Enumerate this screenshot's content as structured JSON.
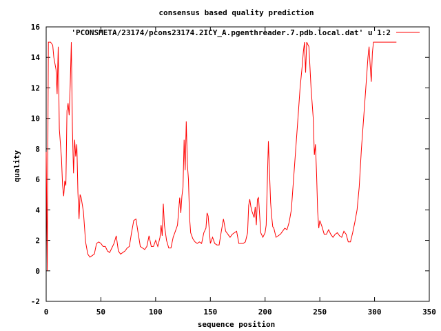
{
  "chart_data": {
    "type": "line",
    "title": "consensus based quality prediction",
    "xlabel": "sequence position",
    "ylabel": "quality",
    "xlim": [
      0,
      350
    ],
    "ylim": [
      -2,
      16
    ],
    "xticks": [
      0,
      50,
      100,
      150,
      200,
      250,
      300,
      350
    ],
    "yticks": [
      -2,
      0,
      2,
      4,
      6,
      8,
      10,
      12,
      14,
      16
    ],
    "grid": false,
    "legend_position": "top-right",
    "series": [
      {
        "name": "'PCONSMETA/23174/pcons23174.2ICY_A.pgenthreader.7.pdb.local.dat' u 1:2",
        "color": "#ff0000",
        "points": [
          [
            0,
            7.8
          ],
          [
            1,
            0
          ],
          [
            2,
            15
          ],
          [
            4,
            15
          ],
          [
            6,
            14.8
          ],
          [
            7,
            14
          ],
          [
            9,
            13.2
          ],
          [
            10,
            11.6
          ],
          [
            11,
            14.7
          ],
          [
            12,
            9.3
          ],
          [
            14,
            7.4
          ],
          [
            15,
            5.6
          ],
          [
            16,
            4.9
          ],
          [
            17,
            5.9
          ],
          [
            18,
            5.6
          ],
          [
            19,
            10.5
          ],
          [
            20,
            11
          ],
          [
            21,
            10.2
          ],
          [
            22,
            12.2
          ],
          [
            23,
            15
          ],
          [
            24,
            9.3
          ],
          [
            25,
            6.4
          ],
          [
            26,
            8.6
          ],
          [
            27,
            7.5
          ],
          [
            28,
            8.3
          ],
          [
            29,
            5.1
          ],
          [
            30,
            3.4
          ],
          [
            31,
            5
          ],
          [
            32,
            4.8
          ],
          [
            34,
            3.9
          ],
          [
            36,
            1.9
          ],
          [
            38,
            1.1
          ],
          [
            40,
            0.9
          ],
          [
            42,
            1
          ],
          [
            44,
            1.1
          ],
          [
            46,
            1.8
          ],
          [
            48,
            1.9
          ],
          [
            50,
            1.8
          ],
          [
            52,
            1.6
          ],
          [
            54,
            1.6
          ],
          [
            56,
            1.3
          ],
          [
            58,
            1.2
          ],
          [
            60,
            1.5
          ],
          [
            62,
            1.8
          ],
          [
            64,
            2.3
          ],
          [
            66,
            1.3
          ],
          [
            68,
            1.1
          ],
          [
            70,
            1.2
          ],
          [
            72,
            1.3
          ],
          [
            74,
            1.5
          ],
          [
            76,
            1.6
          ],
          [
            78,
            2.5
          ],
          [
            80,
            3.3
          ],
          [
            82,
            3.4
          ],
          [
            84,
            2.5
          ],
          [
            86,
            1.6
          ],
          [
            88,
            1.5
          ],
          [
            90,
            1.4
          ],
          [
            92,
            1.6
          ],
          [
            94,
            2.3
          ],
          [
            96,
            1.6
          ],
          [
            98,
            1.6
          ],
          [
            100,
            2
          ],
          [
            102,
            1.6
          ],
          [
            104,
            2.2
          ],
          [
            105,
            3
          ],
          [
            106,
            2.3
          ],
          [
            107,
            4.4
          ],
          [
            108,
            3
          ],
          [
            110,
            2
          ],
          [
            112,
            1.5
          ],
          [
            114,
            1.5
          ],
          [
            116,
            2.2
          ],
          [
            118,
            2.6
          ],
          [
            120,
            3
          ],
          [
            122,
            4.8
          ],
          [
            123,
            3.8
          ],
          [
            124,
            4.9
          ],
          [
            125,
            5.5
          ],
          [
            126,
            8.6
          ],
          [
            127,
            6.6
          ],
          [
            128,
            9.8
          ],
          [
            129,
            7
          ],
          [
            130,
            6
          ],
          [
            131,
            3.5
          ],
          [
            132,
            2.5
          ],
          [
            134,
            2.1
          ],
          [
            136,
            1.9
          ],
          [
            138,
            1.8
          ],
          [
            140,
            1.9
          ],
          [
            142,
            1.8
          ],
          [
            144,
            2.5
          ],
          [
            146,
            2.8
          ],
          [
            147,
            3.8
          ],
          [
            148,
            3.6
          ],
          [
            150,
            1.8
          ],
          [
            152,
            2.2
          ],
          [
            154,
            1.8
          ],
          [
            156,
            1.7
          ],
          [
            158,
            1.7
          ],
          [
            160,
            2.6
          ],
          [
            162,
            3.4
          ],
          [
            164,
            2.6
          ],
          [
            166,
            2.4
          ],
          [
            168,
            2.2
          ],
          [
            170,
            2.4
          ],
          [
            172,
            2.5
          ],
          [
            174,
            2.6
          ],
          [
            176,
            1.8
          ],
          [
            178,
            1.8
          ],
          [
            180,
            1.8
          ],
          [
            182,
            1.9
          ],
          [
            184,
            2.5
          ],
          [
            185,
            4.3
          ],
          [
            186,
            4.7
          ],
          [
            187,
            4.2
          ],
          [
            188,
            3.9
          ],
          [
            190,
            3.5
          ],
          [
            191,
            4.2
          ],
          [
            192,
            3
          ],
          [
            193,
            4.7
          ],
          [
            194,
            4.8
          ],
          [
            196,
            2.5
          ],
          [
            198,
            2.2
          ],
          [
            200,
            2.5
          ],
          [
            201,
            3
          ],
          [
            203,
            8.5
          ],
          [
            205,
            4.5
          ],
          [
            206,
            3.6
          ],
          [
            207,
            2.9
          ],
          [
            208,
            2.8
          ],
          [
            210,
            2.2
          ],
          [
            212,
            2.3
          ],
          [
            214,
            2.4
          ],
          [
            216,
            2.6
          ],
          [
            218,
            2.8
          ],
          [
            220,
            2.7
          ],
          [
            222,
            3.2
          ],
          [
            224,
            4
          ],
          [
            226,
            6
          ],
          [
            228,
            8
          ],
          [
            230,
            10
          ],
          [
            232,
            12
          ],
          [
            234,
            13.5
          ],
          [
            235,
            14.4
          ],
          [
            236,
            15
          ],
          [
            237,
            13
          ],
          [
            238,
            15
          ],
          [
            240,
            14.7
          ],
          [
            242,
            12
          ],
          [
            244,
            10
          ],
          [
            245,
            7.6
          ],
          [
            246,
            8.3
          ],
          [
            247,
            6.4
          ],
          [
            248,
            3.9
          ],
          [
            249,
            2.8
          ],
          [
            250,
            3.3
          ],
          [
            252,
            2.9
          ],
          [
            254,
            2.4
          ],
          [
            256,
            2.4
          ],
          [
            258,
            2.7
          ],
          [
            260,
            2.4
          ],
          [
            262,
            2.2
          ],
          [
            264,
            2.4
          ],
          [
            266,
            2.5
          ],
          [
            268,
            2.3
          ],
          [
            270,
            2.2
          ],
          [
            272,
            2.6
          ],
          [
            274,
            2.4
          ],
          [
            276,
            1.9
          ],
          [
            278,
            1.9
          ],
          [
            280,
            2.5
          ],
          [
            282,
            3.2
          ],
          [
            284,
            4
          ],
          [
            286,
            5.5
          ],
          [
            288,
            8
          ],
          [
            290,
            10
          ],
          [
            292,
            12
          ],
          [
            294,
            14
          ],
          [
            295,
            14.7
          ],
          [
            296,
            13.5
          ],
          [
            297,
            12.4
          ],
          [
            298,
            14.3
          ],
          [
            299,
            15
          ],
          [
            300,
            15
          ],
          [
            305,
            15
          ],
          [
            310,
            15
          ],
          [
            315,
            15
          ],
          [
            320,
            15
          ]
        ]
      }
    ]
  }
}
